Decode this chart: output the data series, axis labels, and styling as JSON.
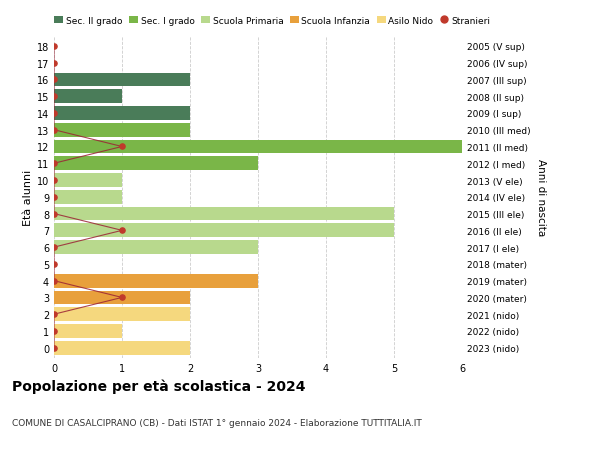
{
  "ages": [
    18,
    17,
    16,
    15,
    14,
    13,
    12,
    11,
    10,
    9,
    8,
    7,
    6,
    5,
    4,
    3,
    2,
    1,
    0
  ],
  "right_labels": [
    "2005 (V sup)",
    "2006 (IV sup)",
    "2007 (III sup)",
    "2008 (II sup)",
    "2009 (I sup)",
    "2010 (III med)",
    "2011 (II med)",
    "2012 (I med)",
    "2013 (V ele)",
    "2014 (IV ele)",
    "2015 (III ele)",
    "2016 (II ele)",
    "2017 (I ele)",
    "2018 (mater)",
    "2019 (mater)",
    "2020 (mater)",
    "2021 (nido)",
    "2022 (nido)",
    "2023 (nido)"
  ],
  "bar_values": [
    0,
    0,
    2,
    1,
    2,
    2,
    6,
    3,
    1,
    1,
    5,
    5,
    3,
    0,
    3,
    2,
    2,
    1,
    2
  ],
  "bar_colors": [
    "#4a7c59",
    "#4a7c59",
    "#4a7c59",
    "#4a7c59",
    "#4a7c59",
    "#7ab648",
    "#7ab648",
    "#7ab648",
    "#b8d98d",
    "#b8d98d",
    "#b8d98d",
    "#b8d98d",
    "#b8d98d",
    "#e8a03c",
    "#e8a03c",
    "#e8a03c",
    "#f5d87e",
    "#f5d87e",
    "#f5d87e"
  ],
  "stranieri_x": [
    0,
    0,
    0,
    0,
    0,
    0,
    1,
    0,
    0,
    0,
    0,
    1,
    0,
    0,
    0,
    1,
    0,
    0,
    0
  ],
  "title": "Popolazione per età scolastica - 2024",
  "subtitle": "COMUNE DI CASALCIPRANO (CB) - Dati ISTAT 1° gennaio 2024 - Elaborazione TUTTITALIA.IT",
  "ylabel_left": "Età alunni",
  "ylabel_right": "Anni di nascita",
  "legend_labels": [
    "Sec. II grado",
    "Sec. I grado",
    "Scuola Primaria",
    "Scuola Infanzia",
    "Asilo Nido",
    "Stranieri"
  ],
  "legend_colors": [
    "#4a7c59",
    "#7ab648",
    "#b8d98d",
    "#e8a03c",
    "#f5d87e",
    "#c0392b"
  ],
  "xlim": [
    0,
    6
  ],
  "bg_color": "#ffffff",
  "grid_color": "#cccccc",
  "stranieri_color": "#c0392b",
  "stranieri_line_color": "#9b2335"
}
